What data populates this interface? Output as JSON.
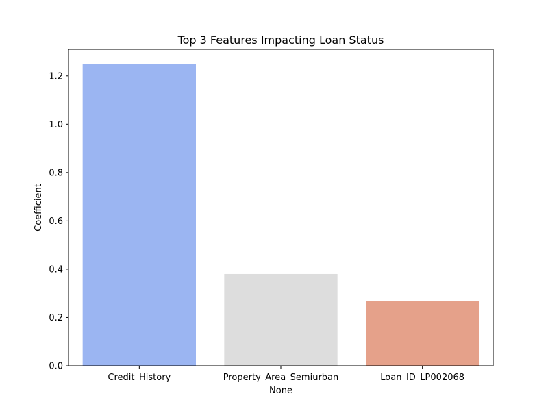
{
  "chart_data": {
    "type": "bar",
    "title": "Top 3 Features Impacting Loan Status",
    "xlabel": "None",
    "ylabel": "Coefficient",
    "categories": [
      "Credit_History",
      "Property_Area_Semiurban",
      "Loan_ID_LP002068"
    ],
    "values": [
      1.248,
      0.38,
      0.268
    ],
    "colors": [
      "#9bb5f2",
      "#dddddd",
      "#e5a18a"
    ],
    "ylim": [
      0,
      1.31
    ],
    "yticks": [
      0.0,
      0.2,
      0.4,
      0.6,
      0.8,
      1.0,
      1.2
    ],
    "ytick_labels": [
      "0.0",
      "0.2",
      "0.4",
      "0.6",
      "0.8",
      "1.0",
      "1.2"
    ],
    "grid": false,
    "legend": "none"
  }
}
